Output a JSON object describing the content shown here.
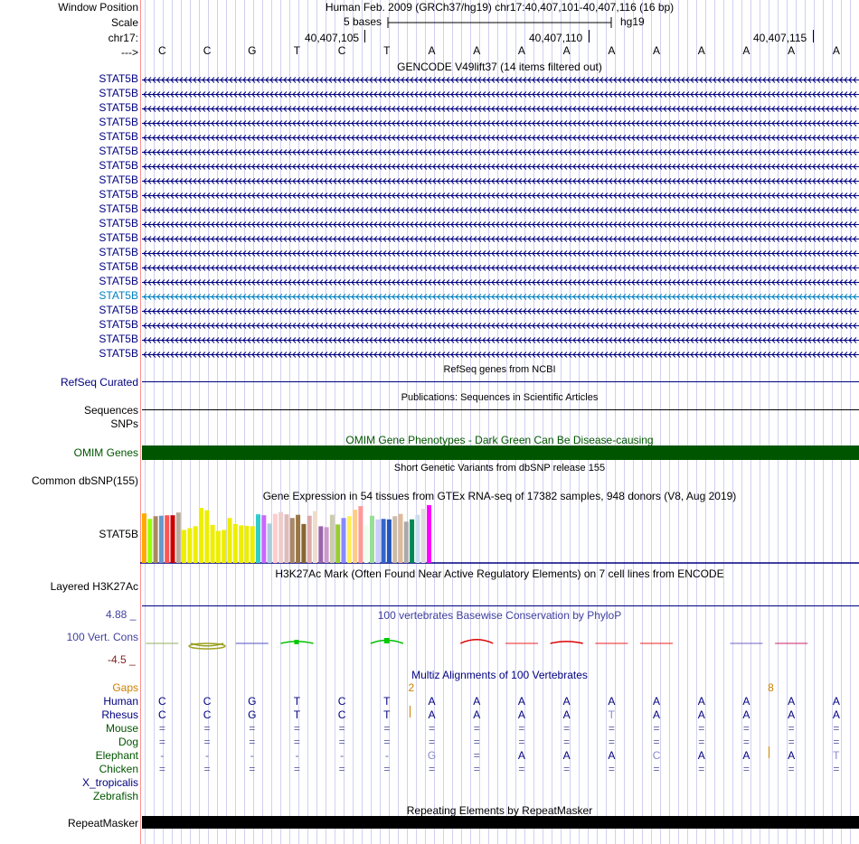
{
  "colors": {
    "navy": "#000080",
    "orange": "#cc8000",
    "dark_green": "#005500",
    "omim_green": "#005500",
    "teal": "#0080c0",
    "grid": "#d0d0f0",
    "red_line": "#ff9090",
    "conservation_label": "#4040a0",
    "conservation_min": "#802020"
  },
  "header": {
    "window_position_label": "Window Position",
    "window_position_value": "Human Feb. 2009 (GRCh37/hg19)   chr17:40,407,101-40,407,116 (16 bp)",
    "scale_label": "Scale",
    "scale_bar_text": "5 bases",
    "scale_assembly": "hg19",
    "chrom_label": "chr17:",
    "strand_label": "--->",
    "positions": [
      "40,407,105",
      "40,407,110",
      "40,407,115"
    ]
  },
  "bases": [
    "C",
    "C",
    "G",
    "T",
    "C",
    "T",
    "A",
    "A",
    "A",
    "A",
    "A",
    "A",
    "A",
    "A",
    "A",
    "A"
  ],
  "gencode": {
    "title": "GENCODE V49lift37 (14 items filtered out)",
    "item_label": "STAT5B",
    "rows": 20,
    "highlight_row": 15
  },
  "tracks": {
    "refseq_title": "RefSeq genes from NCBI",
    "refseq_label": "RefSeq Curated",
    "pubs_title": "Publications: Sequences in Scientific Articles",
    "sequences_label": "Sequences",
    "snps_label": "SNPs",
    "omim_title": "OMIM Gene Phenotypes - Dark Green Can Be Disease-causing",
    "omim_label": "OMIM Genes",
    "dbsnp_title": "Short Genetic Variants from dbSNP release 155",
    "dbsnp_label": "Common dbSNP(155)",
    "gtex_title": "Gene Expression in 54 tissues from GTEx RNA-seq of 17382 samples, 948 donors (V8, Aug 2019)",
    "gtex_label": "STAT5B",
    "h3k27_title": "H3K27Ac Mark (Often Found Near Active Regulatory Elements) on 7 cell lines from ENCODE",
    "h3k27_label": "Layered H3K27Ac",
    "cons_title": "100 vertebrates Basewise Conservation by PhyloP",
    "cons_label": "100 Vert. Cons",
    "cons_max": "4.88 _",
    "cons_min": "-4.5 _",
    "multiz_title": "Multiz Alignments of 100 Vertebrates",
    "gaps_label": "Gaps",
    "gap_marks": [
      {
        "base_index": 6,
        "text": "2"
      },
      {
        "base_index": 14,
        "text": "8"
      }
    ],
    "repeat_title": "Repeating Elements by RepeatMasker",
    "repeat_label": "RepeatMasker"
  },
  "alignment": [
    {
      "species": "Human",
      "color": "#000080",
      "seq": [
        "C",
        "C",
        "G",
        "T",
        "C",
        "T",
        "A",
        "A",
        "A",
        "A",
        "A",
        "A",
        "A",
        "A",
        "A",
        "A"
      ]
    },
    {
      "species": "Rhesus",
      "color": "#000080",
      "seq": [
        "C",
        "C",
        "G",
        "T",
        "C",
        "T",
        "A",
        "A",
        "A",
        "A",
        "T",
        "A",
        "A",
        "A",
        "A",
        "A"
      ]
    },
    {
      "species": "Mouse",
      "color": "#005500",
      "seq": [
        "=",
        "=",
        "=",
        "=",
        "=",
        "=",
        "=",
        "=",
        "=",
        "=",
        "=",
        "=",
        "=",
        "=",
        "=",
        "="
      ]
    },
    {
      "species": "Dog",
      "color": "#005500",
      "seq": [
        "=",
        "=",
        "=",
        "=",
        "=",
        "=",
        "=",
        "=",
        "=",
        "=",
        "=",
        "=",
        "=",
        "=",
        "=",
        "="
      ]
    },
    {
      "species": "Elephant",
      "color": "#005500",
      "seq": [
        "-",
        "-",
        "-",
        "-",
        "-",
        "-",
        "G",
        "=",
        "A",
        "A",
        "A",
        "C",
        "A",
        "A",
        "A",
        "T"
      ]
    },
    {
      "species": "Chicken",
      "color": "#005500",
      "seq": [
        "=",
        "=",
        "=",
        "=",
        "=",
        "=",
        "=",
        "=",
        "=",
        "=",
        "=",
        "=",
        "=",
        "=",
        "=",
        "="
      ]
    },
    {
      "species": "X_tropicalis",
      "color": "#000080",
      "seq": [
        "",
        "",
        "",
        "",
        "",
        "",
        "",
        "",
        "",
        "",
        "",
        "",
        "",
        "",
        "",
        ""
      ]
    },
    {
      "species": "Zebrafish",
      "color": "#005500",
      "seq": [
        "",
        "",
        "",
        "",
        "",
        "",
        "",
        "",
        "",
        "",
        "",
        "",
        "",
        "",
        "",
        ""
      ]
    }
  ],
  "gtex_bars": [
    {
      "value": 10.8,
      "color": "#FFAA00"
    },
    {
      "value": 9.6,
      "color": "#99FF00"
    },
    {
      "value": 10.2,
      "color": "#AA8866"
    },
    {
      "value": 10.3,
      "color": "#6699CC"
    },
    {
      "value": 10.4,
      "color": "#FF5555"
    },
    {
      "value": 10.4,
      "color": "#CC0000"
    },
    {
      "value": 11.0,
      "color": "#BBAA99"
    },
    {
      "value": 7.2,
      "color": "#EEEE00"
    },
    {
      "value": 7.6,
      "color": "#EEEE00"
    },
    {
      "value": 8.0,
      "color": "#EEEE00"
    },
    {
      "value": 12.0,
      "color": "#EEEE00"
    },
    {
      "value": 11.5,
      "color": "#EEEE00"
    },
    {
      "value": 8.3,
      "color": "#EEEE00"
    },
    {
      "value": 7.0,
      "color": "#EEEE00"
    },
    {
      "value": 7.2,
      "color": "#EEEE00"
    },
    {
      "value": 9.8,
      "color": "#EEEE00"
    },
    {
      "value": 8.5,
      "color": "#EEEE00"
    },
    {
      "value": 8.2,
      "color": "#EEEE00"
    },
    {
      "value": 8.1,
      "color": "#EEEE00"
    },
    {
      "value": 8.0,
      "color": "#EEEE00"
    },
    {
      "value": 10.6,
      "color": "#33CCCC"
    },
    {
      "value": 10.4,
      "color": "#CC66FF"
    },
    {
      "value": 8.6,
      "color": "#AACCDD"
    },
    {
      "value": 10.7,
      "color": "#FFCCCC"
    },
    {
      "value": 11.1,
      "color": "#EECCCC"
    },
    {
      "value": 10.6,
      "color": "#DDBBBB"
    },
    {
      "value": 9.8,
      "color": "#AA8866"
    },
    {
      "value": 10.5,
      "color": "#997744"
    },
    {
      "value": 8.5,
      "color": "#886633"
    },
    {
      "value": 10.3,
      "color": "#DDAAAA"
    },
    {
      "value": 11.3,
      "color": "#EEDDCC"
    },
    {
      "value": 8.0,
      "color": "#9966AA"
    },
    {
      "value": 7.8,
      "color": "#CC99CC"
    },
    {
      "value": 10.5,
      "color": "#CCCCAA"
    },
    {
      "value": 8.4,
      "color": "#99CC33"
    },
    {
      "value": 9.8,
      "color": "#8888FF"
    },
    {
      "value": 10.2,
      "color": "#FFEE55"
    },
    {
      "value": 11.6,
      "color": "#FFCC88"
    },
    {
      "value": 12.4,
      "color": "#FF9999"
    },
    {
      "value": 8.2,
      "color": "#EEFFEE"
    },
    {
      "value": 10.3,
      "color": "#99DD99"
    },
    {
      "value": 9.5,
      "color": "#CCCCFF"
    },
    {
      "value": 9.6,
      "color": "#3366CC"
    },
    {
      "value": 9.5,
      "color": "#2255BB"
    },
    {
      "value": 10.2,
      "color": "#CCBBAA"
    },
    {
      "value": 10.7,
      "color": "#DDBB99"
    },
    {
      "value": 9.0,
      "color": "#AAAAAA"
    },
    {
      "value": 9.5,
      "color": "#008855"
    },
    {
      "value": 10.5,
      "color": "#CCDDEE"
    },
    {
      "value": 11.8,
      "color": "#DDDDDD"
    },
    {
      "value": 12.6,
      "color": "#FF00FF"
    }
  ],
  "conservation": [
    {
      "base_index": 0,
      "value": 0.1,
      "color": "#90b060"
    },
    {
      "base_index": 1,
      "value": -0.4,
      "color": "#90a020"
    },
    {
      "base_index": 2,
      "value": -0.1,
      "color": "#5050c0"
    },
    {
      "base_index": 3,
      "value": 0.3,
      "color": "#00c000"
    },
    {
      "base_index": 5,
      "value": 0.5,
      "color": "#00c000"
    },
    {
      "base_index": 7,
      "value": 0.6,
      "color": "#dd0000"
    },
    {
      "base_index": 8,
      "value": -0.1,
      "color": "#ee2222"
    },
    {
      "base_index": 9,
      "value": 0.3,
      "color": "#dd0000"
    },
    {
      "base_index": 10,
      "value": 0.1,
      "color": "#ee2222"
    },
    {
      "base_index": 11,
      "value": -0.1,
      "color": "#ee2222"
    },
    {
      "base_index": 13,
      "value": 0.05,
      "color": "#7060c0"
    },
    {
      "base_index": 14,
      "value": 0.05,
      "color": "#cc2266"
    }
  ]
}
